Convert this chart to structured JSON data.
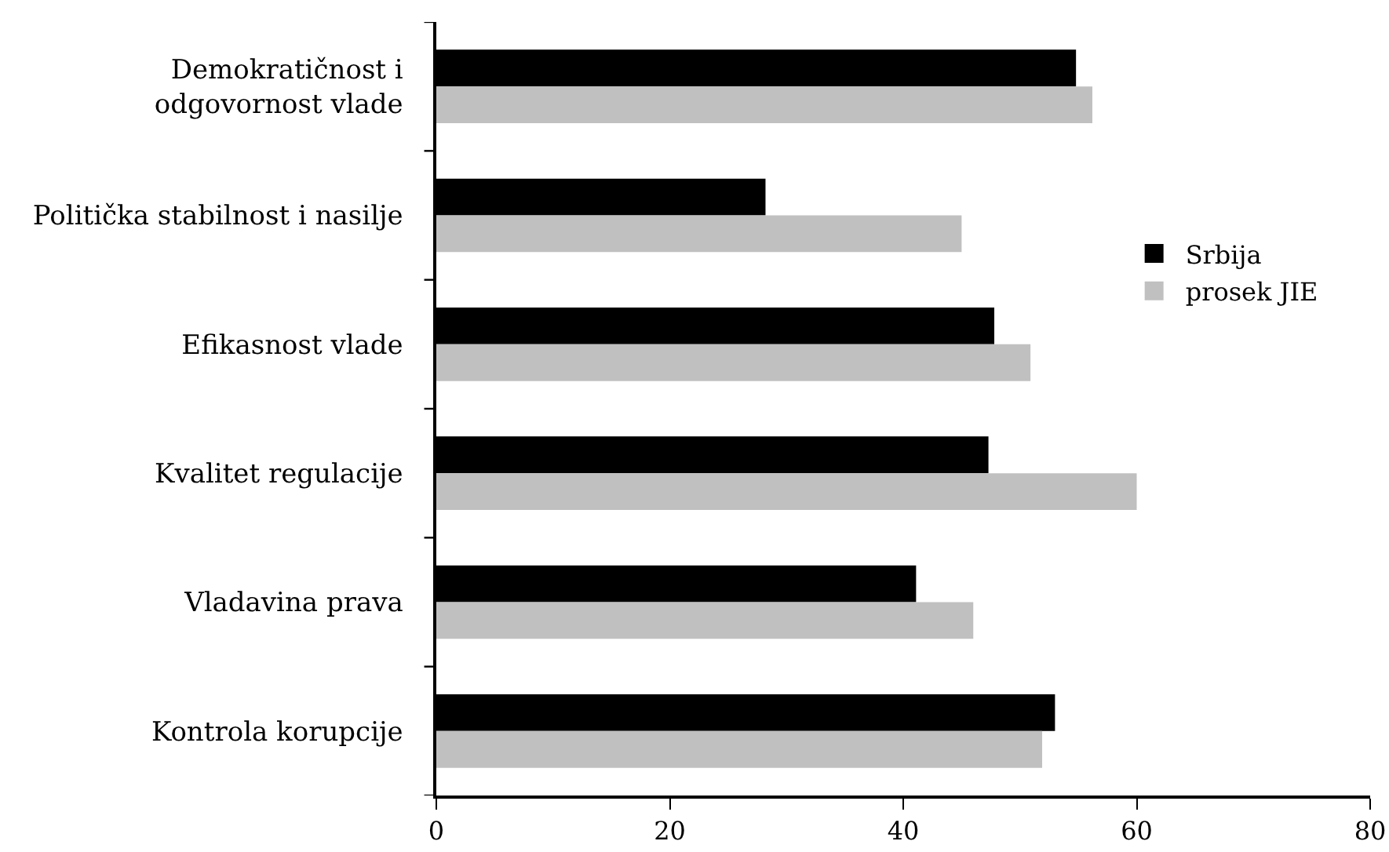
{
  "chart_data": {
    "type": "bar",
    "orientation": "horizontal",
    "categories": [
      "Demokratičnost i odgovornost vlade",
      "Politička stabilnost i nasilje",
      "Efikasnost vlade",
      "Kvalitet regulacije",
      "Vladavina prava",
      "Kontrola korupcije"
    ],
    "series": [
      {
        "name": "Srbija",
        "color": "#000000",
        "values": [
          54.8,
          28.2,
          47.8,
          47.3,
          41.1,
          53.0
        ]
      },
      {
        "name": "prosek JIE",
        "color": "#c0c0c0",
        "values": [
          56.2,
          45.0,
          50.9,
          60.0,
          46.0,
          51.9
        ]
      }
    ],
    "xlim": [
      0,
      80
    ],
    "xticks": [
      0,
      20,
      40,
      60,
      80
    ],
    "grid": false,
    "legend": "top right"
  }
}
